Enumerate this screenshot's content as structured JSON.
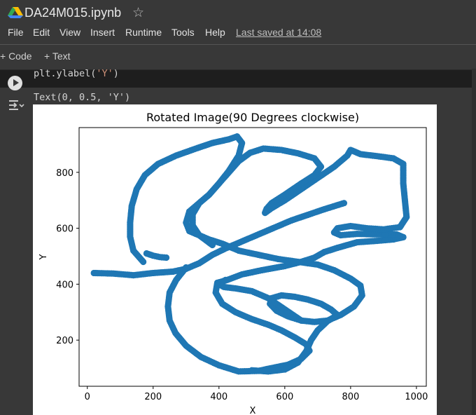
{
  "app": {
    "doc_title": "DA24M015.ipynb",
    "logo_icon": "colab-drive-logo",
    "star_icon": "star-outline-icon"
  },
  "menu": {
    "items": [
      "File",
      "Edit",
      "View",
      "Insert",
      "Runtime",
      "Tools",
      "Help"
    ],
    "last_saved": "Last saved at 14:08"
  },
  "toolbar": {
    "add_code": "+ Code",
    "add_text": "+ Text"
  },
  "cell": {
    "code_prefix": "plt.ylabel(",
    "code_arg": "'Y'",
    "code_suffix": ")",
    "output_text": "Text(0, 0.5, 'Y')"
  },
  "colors": {
    "background": "#383838",
    "code_bg": "#1e1e1e",
    "series": "#1f77b4"
  },
  "chart_data": {
    "type": "scatter",
    "title": "Rotated Image(90 Degrees clockwise)",
    "xlabel": "X",
    "ylabel": "Y",
    "xlim": [
      -25,
      1030
    ],
    "ylim": [
      35,
      960
    ],
    "xticks": [
      0,
      200,
      400,
      600,
      800,
      1000
    ],
    "yticks": [
      200,
      400,
      600,
      800
    ],
    "grid": false,
    "series": [
      {
        "name": "",
        "strokes": [
          [
            [
              20,
              440
            ],
            [
              80,
              438
            ],
            [
              140,
              432
            ],
            [
              200,
              440
            ],
            [
              260,
              445
            ],
            [
              300,
              455
            ],
            [
              340,
              475
            ],
            [
              380,
              505
            ],
            [
              420,
              528
            ],
            [
              470,
              553
            ],
            [
              520,
              578
            ],
            [
              570,
              603
            ],
            [
              620,
              628
            ],
            [
              670,
              648
            ],
            [
              720,
              668
            ],
            [
              780,
              690
            ]
          ],
          [
            [
              170,
              480
            ],
            [
              140,
              520
            ],
            [
              130,
              570
            ],
            [
              130,
              620
            ],
            [
              135,
              680
            ],
            [
              150,
              740
            ],
            [
              175,
              790
            ],
            [
              215,
              830
            ],
            [
              270,
              860
            ],
            [
              330,
              885
            ],
            [
              380,
              905
            ],
            [
              430,
              918
            ],
            [
              455,
              928
            ]
          ],
          [
            [
              240,
              495
            ],
            [
              220,
              497
            ],
            [
              200,
              502
            ],
            [
              180,
              510
            ]
          ],
          [
            [
              300,
              460
            ],
            [
              270,
              415
            ],
            [
              250,
              370
            ],
            [
              245,
              320
            ],
            [
              250,
              270
            ],
            [
              268,
              225
            ],
            [
              300,
              180
            ],
            [
              345,
              140
            ],
            [
              400,
              110
            ],
            [
              460,
              88
            ],
            [
              520,
              90
            ],
            [
              560,
              100
            ],
            [
              610,
              112
            ],
            [
              650,
              133
            ],
            [
              675,
              162
            ],
            [
              665,
              185
            ],
            [
              630,
              210
            ],
            [
              590,
              235
            ],
            [
              550,
              255
            ],
            [
              500,
              275
            ],
            [
              450,
              300
            ],
            [
              410,
              330
            ],
            [
              390,
              370
            ],
            [
              395,
              405
            ],
            [
              425,
              415
            ],
            [
              470,
              435
            ],
            [
              530,
              450
            ],
            [
              600,
              465
            ],
            [
              650,
              480
            ],
            [
              690,
              495
            ],
            [
              720,
              515
            ],
            [
              760,
              530
            ],
            [
              820,
              550
            ],
            [
              880,
              555
            ],
            [
              930,
              560
            ],
            [
              960,
              568
            ]
          ],
          [
            [
              960,
              568
            ],
            [
              940,
              578
            ],
            [
              880,
              578
            ],
            [
              820,
              580
            ],
            [
              770,
              575
            ],
            [
              750,
              585
            ],
            [
              760,
              600
            ],
            [
              800,
              608
            ],
            [
              850,
              600
            ],
            [
              900,
              596
            ],
            [
              950,
              604
            ],
            [
              970,
              640
            ],
            [
              965,
              700
            ],
            [
              960,
              760
            ],
            [
              960,
              830
            ],
            [
              930,
              850
            ],
            [
              880,
              858
            ],
            [
              830,
              865
            ],
            [
              800,
              880
            ],
            [
              790,
              860
            ],
            [
              750,
              820
            ],
            [
              700,
              780
            ],
            [
              650,
              740
            ],
            [
              600,
              700
            ],
            [
              560,
              672
            ],
            [
              540,
              655
            ],
            [
              545,
              670
            ],
            [
              560,
              690
            ],
            [
              600,
              720
            ],
            [
              650,
              760
            ],
            [
              690,
              790
            ],
            [
              710,
              820
            ],
            [
              690,
              850
            ],
            [
              640,
              868
            ],
            [
              590,
              880
            ],
            [
              535,
              885
            ],
            [
              495,
              870
            ],
            [
              460,
              840
            ],
            [
              430,
              800
            ],
            [
              400,
              760
            ],
            [
              370,
              720
            ],
            [
              340,
              690
            ],
            [
              320,
              650
            ],
            [
              320,
              610
            ],
            [
              340,
              575
            ],
            [
              380,
              540
            ]
          ],
          [
            [
              455,
              928
            ],
            [
              470,
              905
            ],
            [
              460,
              860
            ],
            [
              430,
              805
            ],
            [
              400,
              760
            ],
            [
              370,
              720
            ],
            [
              340,
              690
            ],
            [
              310,
              660
            ],
            [
              300,
              620
            ],
            [
              310,
              590
            ],
            [
              330,
              580
            ]
          ],
          [
            [
              330,
              580
            ],
            [
              370,
              560
            ],
            [
              410,
              545
            ],
            [
              460,
              520
            ],
            [
              520,
              505
            ],
            [
              580,
              490
            ],
            [
              640,
              480
            ],
            [
              700,
              470
            ],
            [
              750,
              450
            ],
            [
              800,
              420
            ],
            [
              830,
              395
            ],
            [
              835,
              360
            ],
            [
              810,
              320
            ],
            [
              770,
              290
            ],
            [
              730,
              270
            ],
            [
              690,
              265
            ],
            [
              650,
              270
            ],
            [
              610,
              285
            ],
            [
              575,
              305
            ],
            [
              555,
              330
            ],
            [
              560,
              350
            ],
            [
              590,
              360
            ],
            [
              630,
              355
            ],
            [
              670,
              345
            ],
            [
              710,
              330
            ],
            [
              740,
              310
            ],
            [
              760,
              290
            ]
          ],
          [
            [
              760,
              290
            ],
            [
              730,
              268
            ],
            [
              700,
              235
            ],
            [
              680,
              200
            ],
            [
              665,
              160
            ],
            [
              640,
              120
            ],
            [
              600,
              95
            ],
            [
              550,
              88
            ],
            [
              500,
              92
            ]
          ],
          [
            [
              420,
              415
            ],
            [
              400,
              400
            ],
            [
              415,
              390
            ],
            [
              450,
              385
            ],
            [
              500,
              375
            ],
            [
              550,
              350
            ],
            [
              600,
              310
            ],
            [
              650,
              270
            ]
          ]
        ]
      }
    ]
  }
}
